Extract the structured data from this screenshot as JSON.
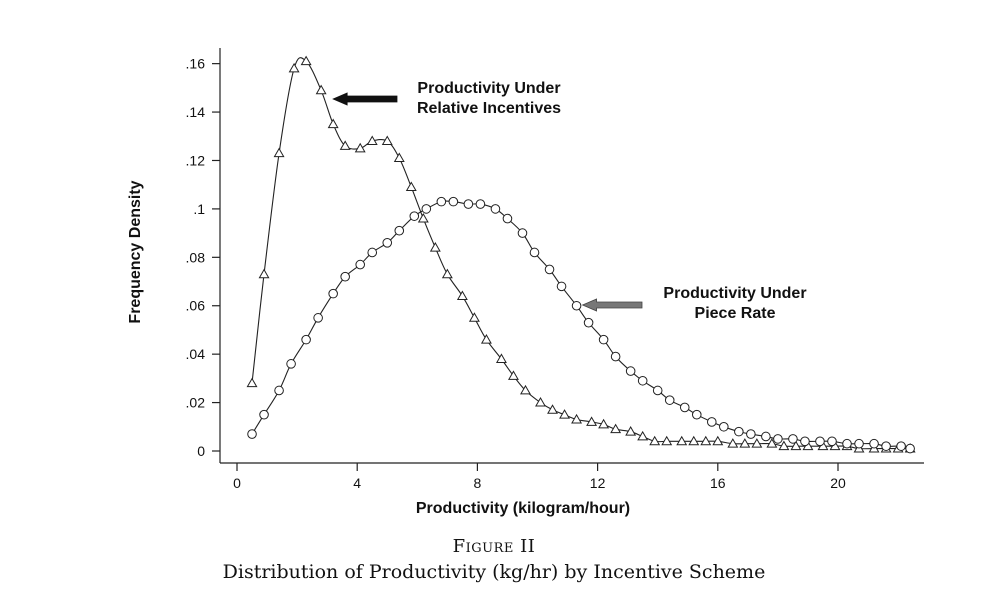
{
  "figure": {
    "number": "Figure II",
    "caption": "Distribution of Productivity (kg/hr) by Incentive Scheme"
  },
  "chart_data": {
    "type": "line",
    "xlabel": "Productivity (kilogram/hour)",
    "ylabel": "Frequency Density",
    "xlim": [
      -0.5,
      23
    ],
    "ylim": [
      -0.005,
      0.166
    ],
    "xticks": [
      0,
      4,
      8,
      12,
      16,
      20
    ],
    "xtick_labels": [
      "0",
      "4",
      "8",
      "12",
      "16",
      "20"
    ],
    "yticks": [
      0,
      0.02,
      0.04,
      0.06,
      0.08,
      0.1,
      0.12,
      0.14,
      0.16
    ],
    "ytick_labels": [
      "0",
      ".02",
      ".04",
      ".06",
      ".08",
      ".1",
      ".12",
      ".14",
      ".16"
    ],
    "grid": false,
    "colors": {
      "line": "#222222",
      "arrow": "#111111",
      "arrow_gray": "#777777"
    },
    "series": [
      {
        "name": "Productivity Under Relative Incentives",
        "marker": "triangle",
        "x": [
          0.5,
          0.9,
          1.4,
          1.9,
          2.3,
          2.8,
          3.2,
          3.6,
          4.1,
          4.5,
          5.0,
          5.4,
          5.8,
          6.2,
          6.6,
          7.0,
          7.5,
          7.9,
          8.3,
          8.8,
          9.2,
          9.6,
          10.1,
          10.5,
          10.9,
          11.3,
          11.8,
          12.2,
          12.6,
          13.1,
          13.5,
          13.9,
          14.3,
          14.8,
          15.2,
          15.6,
          16.0,
          16.5,
          16.9,
          17.3,
          17.8,
          18.2,
          18.6,
          19.0,
          19.5,
          19.9,
          20.3,
          20.7,
          21.2,
          21.6,
          22.0,
          22.4
        ],
        "y": [
          0.028,
          0.073,
          0.123,
          0.158,
          0.161,
          0.149,
          0.135,
          0.126,
          0.125,
          0.128,
          0.128,
          0.121,
          0.109,
          0.096,
          0.084,
          0.073,
          0.064,
          0.055,
          0.046,
          0.038,
          0.031,
          0.025,
          0.02,
          0.017,
          0.015,
          0.013,
          0.012,
          0.011,
          0.009,
          0.008,
          0.006,
          0.004,
          0.004,
          0.004,
          0.004,
          0.004,
          0.004,
          0.003,
          0.003,
          0.003,
          0.003,
          0.002,
          0.002,
          0.002,
          0.002,
          0.002,
          0.002,
          0.001,
          0.001,
          0.001,
          0.001,
          0.001
        ]
      },
      {
        "name": "Productivity Under Piece Rate",
        "marker": "circle",
        "x": [
          0.5,
          0.9,
          1.4,
          1.8,
          2.3,
          2.7,
          3.2,
          3.6,
          4.1,
          4.5,
          5.0,
          5.4,
          5.9,
          6.3,
          6.8,
          7.2,
          7.7,
          8.1,
          8.6,
          9.0,
          9.5,
          9.9,
          10.4,
          10.8,
          11.3,
          11.7,
          12.2,
          12.6,
          13.1,
          13.5,
          14.0,
          14.4,
          14.9,
          15.3,
          15.8,
          16.2,
          16.7,
          17.1,
          17.6,
          18.0,
          18.5,
          18.9,
          19.4,
          19.8,
          20.3,
          20.7,
          21.2,
          21.6,
          22.1,
          22.4
        ],
        "y": [
          0.007,
          0.015,
          0.025,
          0.036,
          0.046,
          0.055,
          0.065,
          0.072,
          0.077,
          0.082,
          0.086,
          0.091,
          0.097,
          0.1,
          0.103,
          0.103,
          0.102,
          0.102,
          0.1,
          0.096,
          0.09,
          0.082,
          0.075,
          0.068,
          0.06,
          0.053,
          0.046,
          0.039,
          0.033,
          0.029,
          0.025,
          0.021,
          0.018,
          0.015,
          0.012,
          0.01,
          0.008,
          0.007,
          0.006,
          0.005,
          0.005,
          0.004,
          0.004,
          0.004,
          0.003,
          0.003,
          0.003,
          0.002,
          0.002,
          0.001
        ]
      }
    ],
    "annotations": [
      {
        "series_index": 0,
        "lines": [
          "Productivity Under",
          "Relative Incentives"
        ],
        "point_to": [
          3.2,
          0.146
        ],
        "arrow_style": "solid"
      },
      {
        "series_index": 1,
        "lines": [
          "Productivity Under",
          "Piece Rate"
        ],
        "point_to": [
          11.5,
          0.06
        ],
        "arrow_style": "gray"
      }
    ]
  }
}
